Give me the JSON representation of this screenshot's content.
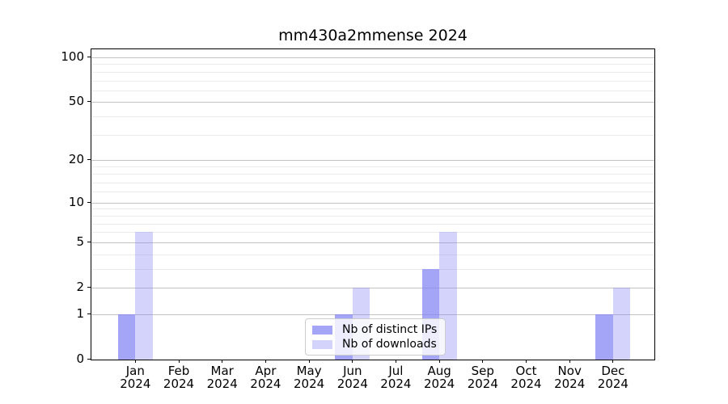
{
  "title": "mm430a2mmense 2024",
  "chart_data": {
    "type": "bar",
    "title": "mm430a2mmense 2024",
    "categories": [
      "Jan",
      "Feb",
      "Mar",
      "Apr",
      "May",
      "Jun",
      "Jul",
      "Aug",
      "Sep",
      "Oct",
      "Nov",
      "Dec"
    ],
    "x_sublabel": "2024",
    "series": [
      {
        "name": "Nb of distinct IPs",
        "color": "rgba(130,130,245,0.72)",
        "color_hex": "#a8a8f5",
        "values": [
          1,
          0,
          0,
          0,
          0,
          1,
          0,
          3,
          0,
          0,
          0,
          1
        ]
      },
      {
        "name": "Nb of downloads",
        "color": "rgba(130,130,245,0.35)",
        "color_hex": "#d8d8f8",
        "values": [
          6,
          0,
          0,
          0,
          0,
          2,
          0,
          6,
          0,
          0,
          0,
          2
        ]
      }
    ],
    "yscale": "log1p",
    "ylim": [
      0,
      115
    ],
    "y_major_ticks": [
      0,
      1,
      2,
      5,
      10,
      20,
      50,
      100
    ],
    "y_minor_ticks": [
      3,
      4,
      6,
      7,
      8,
      9,
      12,
      14,
      16,
      18,
      30,
      40,
      60,
      70,
      80,
      90
    ],
    "grid": true,
    "legend_position": "lower center",
    "colors": {
      "major_grid": "#c3c3c3",
      "minor_grid": "#ececec",
      "spine": "#000000",
      "background": "#ffffff"
    }
  }
}
